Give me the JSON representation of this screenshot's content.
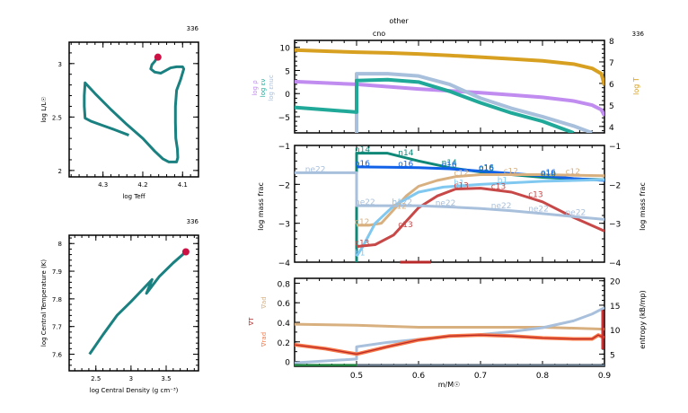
{
  "title": "other",
  "subtitle": "cno",
  "chart_data": [
    {
      "id": "hr",
      "type": "line",
      "title": "336",
      "xlabel": "log Teff",
      "ylabel": "log L/L☉",
      "xlim": [
        4.385,
        4.06
      ],
      "ylim": [
        1.94,
        3.2
      ],
      "xticks": [
        4.3,
        4.2,
        4.1
      ],
      "xtick_labels": [
        "4.3",
        "4.2",
        "4.1"
      ],
      "yticks": [
        2,
        2.5,
        3
      ],
      "ytick_labels": [
        "2",
        "2.5",
        "3"
      ],
      "color": "#1a8080",
      "marker_color": "#cc1144",
      "series": [
        {
          "name": "track",
          "x": [
            4.235,
            4.27,
            4.3,
            4.33,
            4.345,
            4.347,
            4.347,
            4.345,
            4.32,
            4.28,
            4.24,
            4.2,
            4.17,
            4.15,
            4.135,
            4.125,
            4.115,
            4.112,
            4.113,
            4.117,
            4.118,
            4.118,
            4.115,
            4.105,
            4.097,
            4.1,
            4.115,
            4.13,
            4.145,
            4.155,
            4.17,
            4.18,
            4.177,
            4.17,
            4.165,
            4.162
          ],
          "y": [
            2.33,
            2.38,
            2.42,
            2.46,
            2.49,
            2.6,
            2.7,
            2.82,
            2.72,
            2.57,
            2.43,
            2.3,
            2.18,
            2.11,
            2.08,
            2.08,
            2.08,
            2.12,
            2.2,
            2.3,
            2.45,
            2.6,
            2.75,
            2.85,
            2.95,
            2.97,
            2.97,
            2.96,
            2.93,
            2.91,
            2.92,
            2.95,
            2.99,
            3.02,
            3.05,
            3.06
          ]
        },
        {
          "name": "current",
          "x": [
            4.162
          ],
          "y": [
            3.06
          ]
        }
      ]
    },
    {
      "id": "center",
      "type": "line",
      "title": "336",
      "xlabel": "log Central Density (g cm⁻³)",
      "ylabel": "log Central Temperature (K)",
      "xlim": [
        2.12,
        3.96
      ],
      "ylim": [
        7.54,
        8.03
      ],
      "xticks": [
        2.5,
        3,
        3.5
      ],
      "xtick_labels": [
        "2.5",
        "3",
        "3.5"
      ],
      "yticks": [
        7.6,
        7.7,
        7.8,
        7.9,
        8
      ],
      "ytick_labels": [
        "7.6",
        "7.7",
        "7.8",
        "7.9",
        "8"
      ],
      "color": "#1a8080",
      "marker_color": "#cc1144",
      "series": [
        {
          "name": "track",
          "x": [
            2.41,
            2.6,
            2.8,
            3.0,
            3.15,
            3.3,
            3.22,
            3.22,
            3.4,
            3.6,
            3.78
          ],
          "y": [
            7.6,
            7.67,
            7.74,
            7.79,
            7.83,
            7.87,
            7.82,
            7.82,
            7.88,
            7.93,
            7.97
          ]
        },
        {
          "name": "current",
          "x": [
            3.78
          ],
          "y": [
            7.97
          ]
        }
      ]
    },
    {
      "id": "profile-top",
      "type": "line",
      "title": "336",
      "xlim": [
        0.4,
        0.9
      ],
      "ylim": [
        -8.5,
        11.5
      ],
      "ylim_right": [
        3.7,
        8.0
      ],
      "yticks": [
        -5,
        0,
        5,
        10
      ],
      "ytick_labels": [
        "-5",
        "0",
        "5",
        "10"
      ],
      "yticks_right": [
        4,
        5,
        6,
        7,
        8
      ],
      "ytick_labels_right": [
        "4",
        "5",
        "6",
        "7",
        "8"
      ],
      "left_labels": [
        {
          "text": "log ρ",
          "color": "#c08cf0"
        },
        {
          "text": "log εν",
          "color": "#20a898"
        },
        {
          "text": "log εnuc",
          "color": "#a8c0dc"
        }
      ],
      "right_label": {
        "text": "log T",
        "color": "#d8a020"
      },
      "series": [
        {
          "name": "log T",
          "axis": "right",
          "color": "#d8a020",
          "x": [
            0.4,
            0.45,
            0.5,
            0.55,
            0.6,
            0.65,
            0.7,
            0.75,
            0.8,
            0.85,
            0.88,
            0.895,
            0.9
          ],
          "y": [
            7.55,
            7.5,
            7.45,
            7.42,
            7.37,
            7.3,
            7.22,
            7.14,
            7.05,
            6.9,
            6.7,
            6.45,
            5.9
          ]
        },
        {
          "name": "log rho",
          "axis": "left",
          "color": "#c08cf0",
          "x": [
            0.4,
            0.45,
            0.5,
            0.55,
            0.6,
            0.65,
            0.7,
            0.75,
            0.8,
            0.85,
            0.88,
            0.895,
            0.9
          ],
          "y": [
            2.6,
            2.3,
            2.0,
            1.5,
            1.0,
            0.6,
            0.2,
            -0.3,
            -0.8,
            -1.6,
            -2.5,
            -3.5,
            -4.8
          ]
        },
        {
          "name": "log eps_nuc",
          "axis": "left",
          "color": "#a8c0dc",
          "x": [
            0.5,
            0.5,
            0.55,
            0.6,
            0.65,
            0.7,
            0.75,
            0.8,
            0.85,
            0.88
          ],
          "y": [
            -8.5,
            4.3,
            4.3,
            3.8,
            2.0,
            -1.0,
            -3.2,
            -5.0,
            -7.0,
            -8.5
          ]
        },
        {
          "name": "log eps_nu",
          "axis": "left",
          "color": "#20a898",
          "x": [
            0.4,
            0.45,
            0.5,
            0.5,
            0.55,
            0.6,
            0.65,
            0.7,
            0.75,
            0.8,
            0.85
          ],
          "y": [
            -3.0,
            -3.5,
            -4.0,
            2.8,
            3.0,
            2.5,
            0.5,
            -2.0,
            -4.2,
            -6.0,
            -8.5
          ]
        }
      ]
    },
    {
      "id": "profile-abundance",
      "type": "line",
      "ylabel": "log mass frac",
      "ylabel_right": "log mass frac",
      "xlim": [
        0.4,
        0.9
      ],
      "ylim": [
        -4,
        -1
      ],
      "yticks": [
        -4,
        -3,
        -2,
        -1
      ],
      "ytick_labels": [
        "-4",
        "-3",
        "-2",
        "-1"
      ],
      "series": [
        {
          "name": "n14",
          "color": "#108878",
          "x": [
            0.5,
            0.5,
            0.55,
            0.6,
            0.65,
            0.7,
            0.75,
            0.8,
            0.85,
            0.9
          ],
          "y": [
            -4.0,
            -1.2,
            -1.2,
            -1.4,
            -1.57,
            -1.68,
            -1.75,
            -1.82,
            -1.86,
            -1.88
          ],
          "labels": [
            [
              0.5,
              "n14"
            ],
            [
              0.57,
              "n14"
            ],
            [
              0.64,
              "n14"
            ],
            [
              0.7,
              "o16"
            ],
            [
              0.8,
              "o16"
            ]
          ]
        },
        {
          "name": "o16",
          "color": "#1060e8",
          "x": [
            0.5,
            0.55,
            0.6,
            0.65,
            0.7,
            0.75,
            0.8,
            0.85,
            0.9
          ],
          "y": [
            -1.55,
            -1.56,
            -1.57,
            -1.6,
            -1.66,
            -1.72,
            -1.78,
            -1.85,
            -1.9
          ],
          "labels": [
            [
              0.5,
              "o16"
            ],
            [
              0.57,
              "o16"
            ],
            [
              0.64,
              "o16"
            ],
            [
              0.7,
              "o16"
            ],
            [
              0.8,
              "o16"
            ]
          ]
        },
        {
          "name": "c12",
          "color": "#d8b080",
          "x": [
            0.5,
            0.52,
            0.54,
            0.56,
            0.58,
            0.6,
            0.63,
            0.66,
            0.7,
            0.8,
            0.9
          ],
          "y": [
            -3.05,
            -3.05,
            -3.0,
            -2.65,
            -2.3,
            -2.05,
            -1.9,
            -1.8,
            -1.75,
            -1.75,
            -1.78
          ],
          "labels": [
            [
              0.5,
              "c12"
            ],
            [
              0.56,
              "c12"
            ],
            [
              0.66,
              "c12"
            ],
            [
              0.74,
              "c12"
            ],
            [
              0.84,
              "c12"
            ]
          ]
        },
        {
          "name": "h1",
          "color": "#80c8f0",
          "x": [
            0.5,
            0.51,
            0.53,
            0.56,
            0.6,
            0.64,
            0.7,
            0.8,
            0.9
          ],
          "y": [
            -3.85,
            -3.6,
            -3.0,
            -2.55,
            -2.2,
            -2.07,
            -2.0,
            -1.92,
            -1.88
          ],
          "labels": [
            [
              0.5,
              "h1"
            ],
            [
              0.56,
              "h1"
            ],
            [
              0.66,
              "h1"
            ],
            [
              0.73,
              "h1"
            ]
          ]
        },
        {
          "name": "c13",
          "color": "#c84848",
          "x": [
            0.5,
            0.53,
            0.56,
            0.58,
            0.6,
            0.63,
            0.66,
            0.7,
            0.75,
            0.8,
            0.85,
            0.9
          ],
          "y": [
            -3.6,
            -3.55,
            -3.3,
            -2.95,
            -2.6,
            -2.3,
            -2.12,
            -2.1,
            -2.2,
            -2.45,
            -2.85,
            -3.2
          ],
          "labels": [
            [
              0.5,
              "c13"
            ],
            [
              0.57,
              "c13"
            ],
            [
              0.66,
              "c13"
            ],
            [
              0.72,
              "c13"
            ],
            [
              0.78,
              "c13"
            ]
          ]
        },
        {
          "name": "ne22",
          "color": "#a8c0dc",
          "x": [
            0.4,
            0.5,
            0.5,
            0.55,
            0.6,
            0.65,
            0.7,
            0.75,
            0.8,
            0.85,
            0.9
          ],
          "y": [
            -1.7,
            -1.7,
            -2.55,
            -2.55,
            -2.55,
            -2.58,
            -2.62,
            -2.68,
            -2.75,
            -2.83,
            -2.9
          ],
          "labels": [
            [
              0.42,
              "ne22"
            ],
            [
              0.5,
              "ne22"
            ],
            [
              0.56,
              "ne22"
            ],
            [
              0.63,
              "ne22"
            ],
            [
              0.72,
              "ne22"
            ],
            [
              0.78,
              "ne22"
            ],
            [
              0.84,
              "ne22"
            ]
          ]
        },
        {
          "name": "bottom",
          "color": "#b82828",
          "x": [
            0.57,
            0.62
          ],
          "y": [
            -4.0,
            -4.0
          ],
          "labels": []
        }
      ]
    },
    {
      "id": "profile-gradients",
      "type": "line",
      "xlabel": "m/M☉",
      "xlim": [
        0.4,
        0.9
      ],
      "ylim": [
        -0.05,
        0.85
      ],
      "ylim_right": [
        2.5,
        20.5
      ],
      "xticks": [
        0.5,
        0.6,
        0.7,
        0.8,
        0.9
      ],
      "xtick_labels": [
        "0.5",
        "0.6",
        "0.7",
        "0.8",
        "0.9"
      ],
      "yticks": [
        0,
        0.2,
        0.4,
        0.6,
        0.8
      ],
      "ytick_labels": [
        "0",
        "0.2",
        "0.4",
        "0.6",
        "0.8"
      ],
      "yticks_right": [
        5,
        10,
        15,
        20
      ],
      "ytick_labels_right": [
        "5",
        "10",
        "15",
        "20"
      ],
      "left_labels": [
        {
          "text": "∇ad",
          "color": "#d8b080"
        },
        {
          "text": "∇T",
          "color": "#b82828"
        },
        {
          "text": "∇rad",
          "color": "#f87848"
        }
      ],
      "right_label": {
        "text": "entropy (kB/mp)",
        "color": "#000000"
      },
      "series": [
        {
          "name": "grad_ad",
          "axis": "left",
          "color": "#d8b080",
          "x": [
            0.4,
            0.5,
            0.6,
            0.7,
            0.8,
            0.85,
            0.9
          ],
          "y": [
            0.38,
            0.37,
            0.35,
            0.35,
            0.35,
            0.34,
            0.33
          ]
        },
        {
          "name": "entropy",
          "axis": "right",
          "color": "#a8c0dc",
          "x": [
            0.4,
            0.45,
            0.5,
            0.5,
            0.55,
            0.6,
            0.65,
            0.7,
            0.75,
            0.8,
            0.85,
            0.88,
            0.9
          ],
          "y": [
            3.2,
            3.6,
            4.0,
            6.5,
            7.4,
            8.0,
            8.6,
            9.0,
            9.6,
            10.4,
            11.8,
            13.2,
            14.5
          ]
        },
        {
          "name": "grad_rad",
          "axis": "left",
          "color": "#f87848",
          "x": [
            0.4,
            0.45,
            0.5,
            0.55,
            0.6,
            0.65,
            0.7,
            0.75,
            0.8,
            0.85,
            0.88,
            0.89,
            0.9
          ],
          "y": [
            0.17,
            0.13,
            0.075,
            0.15,
            0.22,
            0.26,
            0.27,
            0.26,
            0.24,
            0.23,
            0.23,
            0.27,
            0.24
          ]
        },
        {
          "name": "grad_T",
          "axis": "left",
          "color": "#b82828",
          "x": [
            0.4,
            0.45,
            0.5,
            0.55,
            0.6,
            0.65,
            0.7,
            0.75,
            0.8,
            0.85,
            0.88,
            0.89,
            0.9
          ],
          "y": [
            0.17,
            0.13,
            0.075,
            0.15,
            0.22,
            0.26,
            0.27,
            0.26,
            0.24,
            0.23,
            0.23,
            0.27,
            0.24
          ]
        },
        {
          "name": "conv_green",
          "axis": "left",
          "color": "#208040",
          "x": [
            0.4,
            0.5
          ],
          "y": [
            -0.04,
            -0.04
          ]
        },
        {
          "name": "conv_gray",
          "axis": "left",
          "color": "#607080",
          "x": [
            0.5,
            0.9
          ],
          "y": [
            -0.04,
            -0.04
          ]
        }
      ]
    }
  ]
}
